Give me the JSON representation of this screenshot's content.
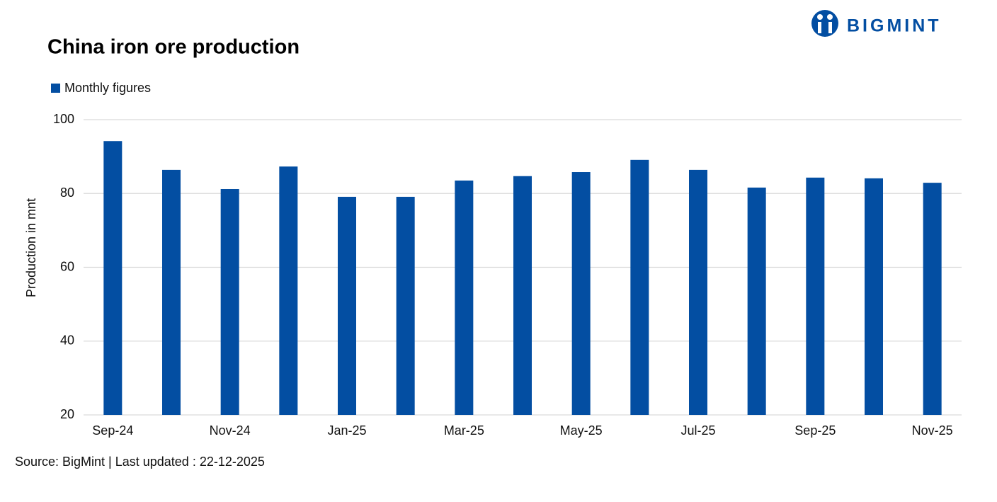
{
  "logo": "BIGMINT",
  "chart_data": {
    "type": "bar",
    "title": "China iron ore production",
    "y_label": "Production in mnt",
    "source": "Source: BigMint | Last updated : 22-12-2025",
    "categories": [
      "Sep-24",
      null,
      "Nov-24",
      null,
      "Jan-25",
      null,
      "Mar-25",
      null,
      "May-25",
      null,
      "Jul-25",
      null,
      "Sep-25",
      null,
      "Nov-25"
    ],
    "series": [
      {
        "name": "Monthly figures",
        "color": "#034ea2",
        "values": [
          94.2,
          86.4,
          81.2,
          87.3,
          79.1,
          79.1,
          83.5,
          84.7,
          85.8,
          89.1,
          86.4,
          81.6,
          84.3,
          84.1,
          82.9
        ]
      }
    ],
    "ylim": [
      20,
      100
    ],
    "yticks": [
      20,
      40,
      60,
      80,
      100
    ],
    "grid": true,
    "legend": "top-left"
  }
}
